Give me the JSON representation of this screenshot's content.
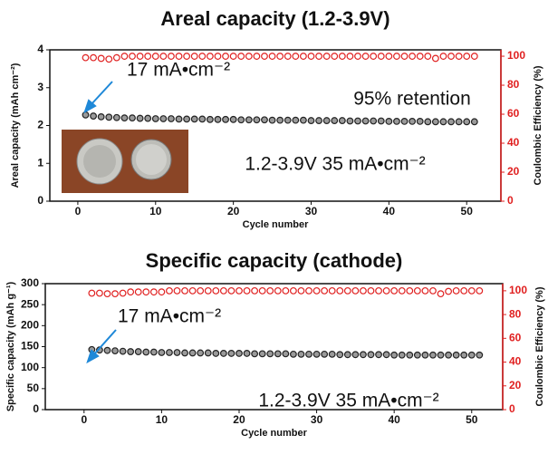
{
  "chart_data": [
    {
      "type": "scatter",
      "title": "Areal capacity (1.2-3.9V)",
      "xlabel": "Cycle number",
      "ylabel": "Areal capacity  (mAh cm⁻²)",
      "y2label": "Coulombic Efficiency (%)",
      "annotations": [
        "17 mA•cm⁻²",
        "95% retention",
        "1.2-3.9V 35 mA•cm⁻²"
      ],
      "x": [
        1,
        2,
        3,
        4,
        5,
        6,
        7,
        8,
        9,
        10,
        11,
        12,
        13,
        14,
        15,
        16,
        17,
        18,
        19,
        20,
        21,
        22,
        23,
        24,
        25,
        26,
        27,
        28,
        29,
        30,
        31,
        32,
        33,
        34,
        35,
        36,
        37,
        38,
        39,
        40,
        41,
        42,
        43,
        44,
        45,
        46,
        47,
        48,
        49,
        50,
        51
      ],
      "series": [
        {
          "color": "#222222",
          "values": [
            2.28,
            2.25,
            2.23,
            2.22,
            2.21,
            2.2,
            2.2,
            2.19,
            2.19,
            2.18,
            2.18,
            2.18,
            2.17,
            2.17,
            2.17,
            2.17,
            2.16,
            2.16,
            2.16,
            2.16,
            2.15,
            2.15,
            2.15,
            2.15,
            2.14,
            2.14,
            2.14,
            2.14,
            2.14,
            2.13,
            2.13,
            2.13,
            2.13,
            2.13,
            2.12,
            2.12,
            2.12,
            2.12,
            2.12,
            2.11,
            2.11,
            2.11,
            2.11,
            2.11,
            2.1,
            2.1,
            2.1,
            2.1,
            2.1,
            2.1,
            2.1
          ]
        },
        {
          "color": "#e02020",
          "axis": "y2",
          "values": [
            99,
            99,
            98.5,
            98,
            99,
            100,
            100,
            100,
            100,
            100,
            100,
            100,
            100,
            100,
            100,
            100,
            100,
            100,
            100,
            100,
            100,
            100,
            100,
            100,
            100,
            100,
            100,
            100,
            100,
            100,
            100,
            100,
            100,
            100,
            100,
            100,
            100,
            100,
            100,
            100,
            100,
            100,
            100,
            100,
            100,
            98.5,
            100,
            100,
            100,
            100,
            100
          ]
        }
      ],
      "xlim": [
        -3.6,
        54.4
      ],
      "xticks": [
        0,
        10,
        20,
        30,
        40,
        50
      ],
      "ylim": [
        0,
        4
      ],
      "yticks": [
        0,
        1,
        2,
        3,
        4
      ],
      "y2lim": [
        0,
        104.4
      ],
      "y2ticks": [
        0,
        20,
        40,
        60,
        80,
        100
      ]
    },
    {
      "type": "scatter",
      "title": "Specific capacity (cathode)",
      "xlabel": "Cycle number",
      "ylabel": "Specific capacity  (mAh g⁻¹)",
      "y2label": "Coulombic Efficiency (%)",
      "annotations": [
        "17 mA•cm⁻²",
        "1.2-3.9V 35 mA•cm⁻²"
      ],
      "x": [
        1,
        2,
        3,
        4,
        5,
        6,
        7,
        8,
        9,
        10,
        11,
        12,
        13,
        14,
        15,
        16,
        17,
        18,
        19,
        20,
        21,
        22,
        23,
        24,
        25,
        26,
        27,
        28,
        29,
        30,
        31,
        32,
        33,
        34,
        35,
        36,
        37,
        38,
        39,
        40,
        41,
        42,
        43,
        44,
        45,
        46,
        47,
        48,
        49,
        50,
        51
      ],
      "series": [
        {
          "color": "#222222",
          "values": [
            143,
            142,
            141,
            140,
            139,
            138,
            138,
            137,
            137,
            136,
            136,
            136,
            135,
            135,
            135,
            135,
            134,
            134,
            134,
            134,
            134,
            133,
            133,
            133,
            133,
            133,
            132,
            132,
            132,
            132,
            132,
            132,
            131,
            131,
            131,
            131,
            131,
            131,
            131,
            130,
            130,
            130,
            130,
            130,
            130,
            130,
            130,
            130,
            130,
            130,
            130
          ]
        },
        {
          "color": "#e02020",
          "axis": "y2",
          "values": [
            98,
            98,
            97.5,
            97.5,
            98,
            99,
            99,
            99,
            99,
            99,
            100,
            100,
            100,
            100,
            100,
            100,
            100,
            100,
            100,
            100,
            100,
            100,
            100,
            100,
            100,
            100,
            100,
            100,
            100,
            100,
            100,
            100,
            100,
            100,
            100,
            100,
            100,
            100,
            100,
            100,
            100,
            100,
            100,
            100,
            100,
            97.5,
            99.5,
            100,
            100,
            100,
            100
          ]
        }
      ],
      "xlim": [
        -5,
        54
      ],
      "xticks": [
        0,
        10,
        20,
        30,
        40,
        50
      ],
      "ylim": [
        0,
        300
      ],
      "yticks": [
        0,
        50,
        100,
        150,
        200,
        250,
        300
      ],
      "y2lim": [
        0,
        106
      ],
      "y2ticks": [
        0,
        20,
        40,
        60,
        80,
        100
      ]
    }
  ]
}
